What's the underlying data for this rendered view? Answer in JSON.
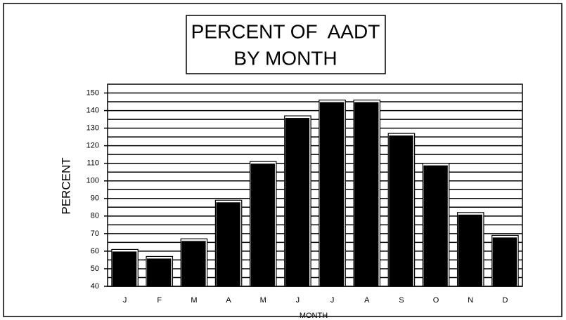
{
  "chart_data": {
    "type": "bar",
    "title": [
      "PERCENT OF  AADT",
      "BY MONTH"
    ],
    "x_label": "MONTH",
    "y_label": "PERCENT",
    "categories": [
      "J",
      "F",
      "M",
      "A",
      "M",
      "J",
      "J",
      "A",
      "S",
      "O",
      "N",
      "D"
    ],
    "values": [
      61,
      57,
      67,
      89,
      111,
      137,
      146,
      146,
      127,
      110,
      82,
      69
    ],
    "color": "#000000",
    "ylim": [
      40,
      155
    ],
    "yticks": [
      40,
      50,
      60,
      70,
      80,
      90,
      100,
      110,
      120,
      130,
      140,
      150
    ],
    "minor_yticks": [
      45,
      55,
      65,
      75,
      85,
      95,
      105,
      115,
      125,
      135,
      145
    ],
    "grid": true
  }
}
